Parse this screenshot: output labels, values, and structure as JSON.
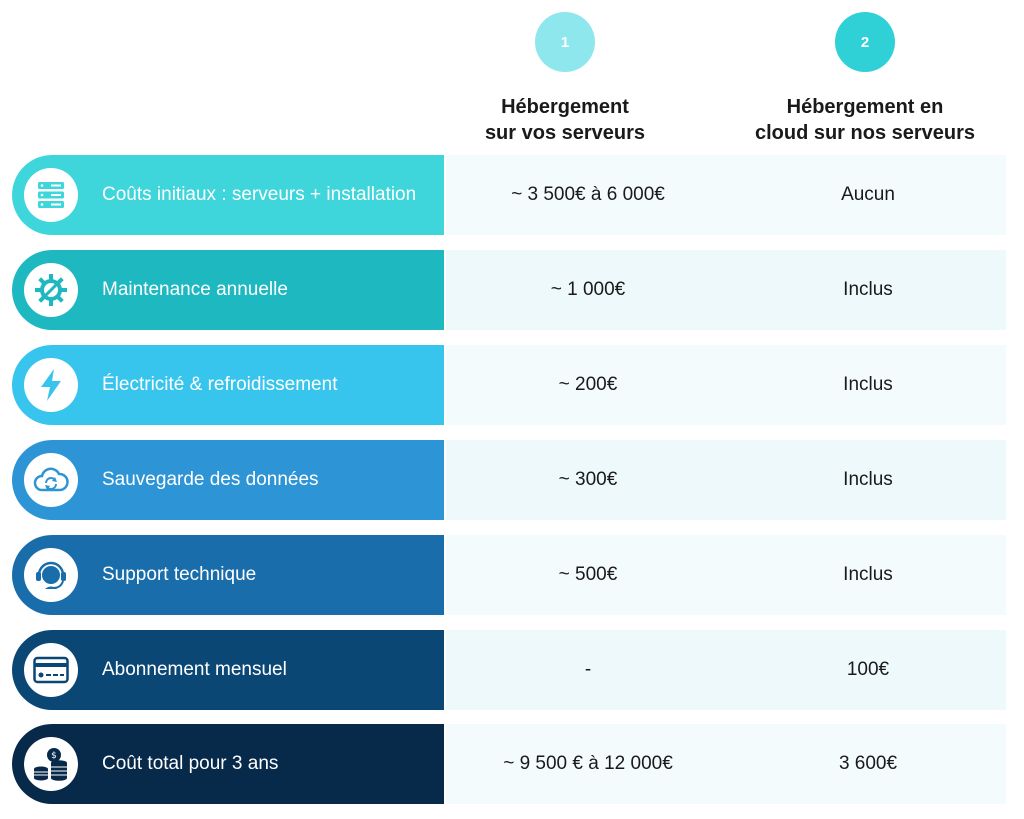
{
  "columns": [
    {
      "number": "1",
      "title_line1": "Hébergement",
      "title_line2": "sur vos serveurs"
    },
    {
      "number": "2",
      "title_line1": "Hébergement en",
      "title_line2": "cloud sur nos serveurs"
    }
  ],
  "rows": [
    {
      "label": "Coûts initiaux : serveurs + installation",
      "icon": "server-icon",
      "color": "#3fd6db",
      "col1": "~ 3 500€ à 6 000€",
      "col2": "Aucun"
    },
    {
      "label": "Maintenance annuelle",
      "icon": "gear-wrench-icon",
      "color": "#1eb8c0",
      "col1": "~ 1 000€",
      "col2": "Inclus"
    },
    {
      "label": "Électricité & refroidissement",
      "icon": "lightning-icon",
      "color": "#37c5ee",
      "col1": "~ 200€",
      "col2": "Inclus"
    },
    {
      "label": "Sauvegarde des données",
      "icon": "cloud-sync-icon",
      "color": "#2d94d6",
      "col1": "~ 300€",
      "col2": "Inclus"
    },
    {
      "label": "Support technique",
      "icon": "headset-icon",
      "color": "#1a6dab",
      "col1": "~ 500€",
      "col2": "Inclus"
    },
    {
      "label": "Abonnement mensuel",
      "icon": "credit-card-icon",
      "color": "#0b4775",
      "col1": "-",
      "col2": "100€"
    },
    {
      "label": "Coût total pour 3 ans",
      "icon": "coins-icon",
      "color": "#07294a",
      "col1": "~ 9 500 € à 12 000€",
      "col2": "3 600€"
    }
  ]
}
